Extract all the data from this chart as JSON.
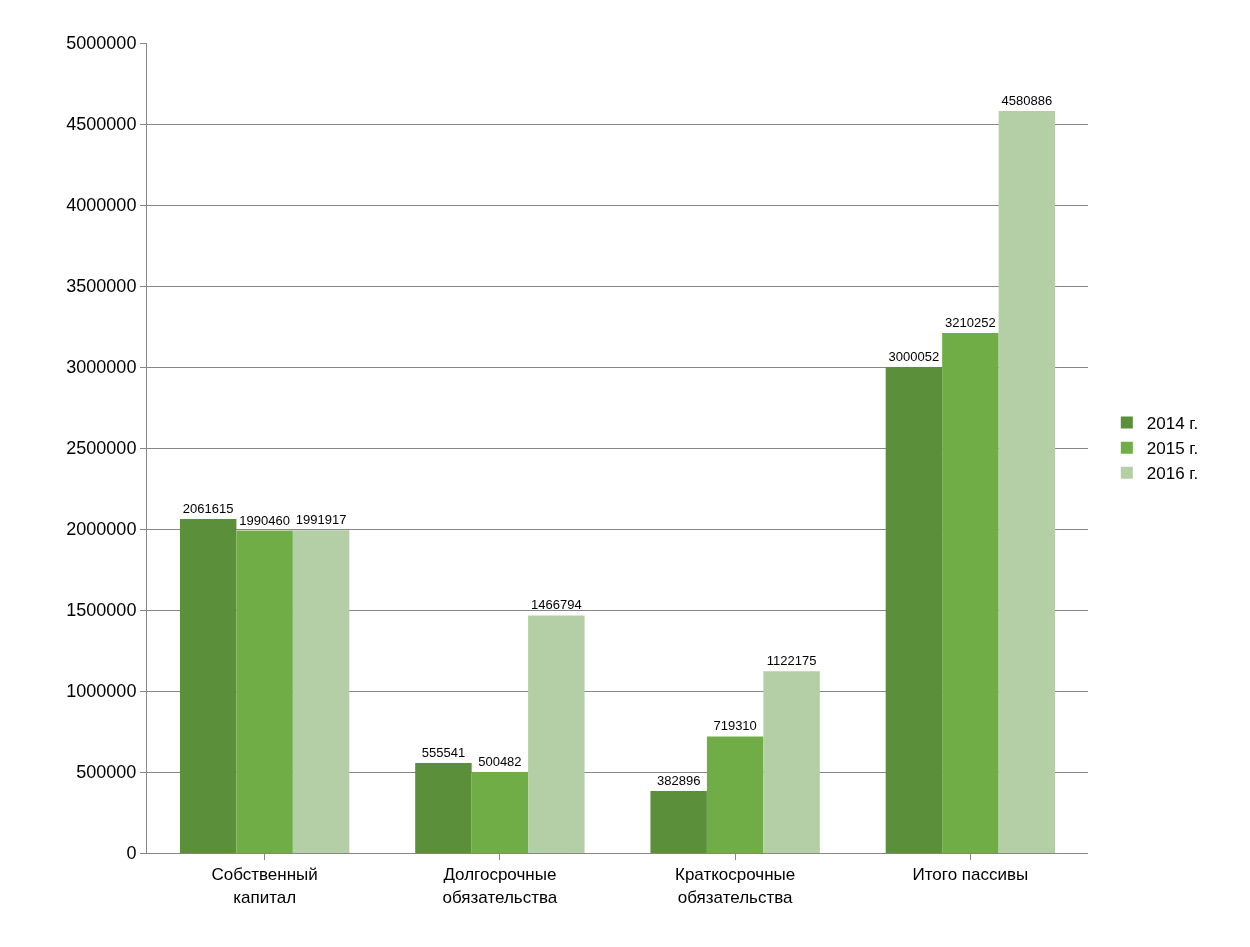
{
  "chart_data": {
    "type": "bar",
    "categories": [
      "Собственный капитал",
      "Долгосрочные обязательства",
      "Краткосрочные обязательства",
      "Итого пассивы"
    ],
    "series": [
      {
        "name": "2014 г.",
        "color": "#5b8f3a",
        "values": [
          2061615,
          555541,
          382896,
          3000052
        ]
      },
      {
        "name": "2015 г.",
        "color": "#70ad47",
        "values": [
          1990460,
          500482,
          719310,
          3210252
        ]
      },
      {
        "name": "2016 г.",
        "color": "#b4cea5",
        "values": [
          1991917,
          1466794,
          1122175,
          4580886
        ]
      }
    ],
    "ylim": [
      0,
      5000000
    ],
    "yticks": [
      0,
      500000,
      1000000,
      1500000,
      2000000,
      2500000,
      3000000,
      3500000,
      4000000,
      4500000,
      5000000
    ],
    "grid": "y",
    "legend": "right",
    "data_labels": true
  }
}
